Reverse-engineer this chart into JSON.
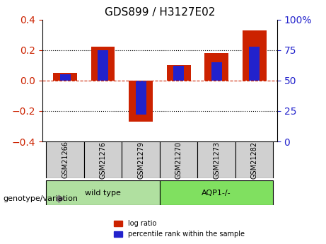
{
  "title": "GDS899 / H3127E02",
  "samples": [
    "GSM21266",
    "GSM21276",
    "GSM21279",
    "GSM21270",
    "GSM21273",
    "GSM21282"
  ],
  "log_ratio": [
    0.05,
    0.22,
    -0.27,
    0.1,
    0.18,
    0.33
  ],
  "percentile_rank": [
    55,
    75,
    22,
    62,
    65,
    78
  ],
  "groups": [
    {
      "label": "wild type",
      "indices": [
        0,
        1,
        2
      ],
      "color": "#b0e0a0"
    },
    {
      "label": "AQP1-/-",
      "indices": [
        3,
        4,
        5
      ],
      "color": "#80e060"
    }
  ],
  "ylim_left": [
    -0.4,
    0.4
  ],
  "ylim_right": [
    0,
    100
  ],
  "yticks_left": [
    -0.4,
    -0.2,
    0.0,
    0.2,
    0.4
  ],
  "yticks_right": [
    0,
    25,
    50,
    75,
    100
  ],
  "bar_color_red": "#cc2200",
  "bar_color_blue": "#2222cc",
  "grid_color": "#000000",
  "hline_color": "#cc2200",
  "xlabel_color": "#000000",
  "left_tick_color": "#cc2200",
  "right_tick_color": "#2222cc",
  "bar_width": 0.35,
  "tick_label_fontsize": 8,
  "genotype_label": "genotype/variation",
  "legend_red": "log ratio",
  "legend_blue": "percentile rank within the sample"
}
